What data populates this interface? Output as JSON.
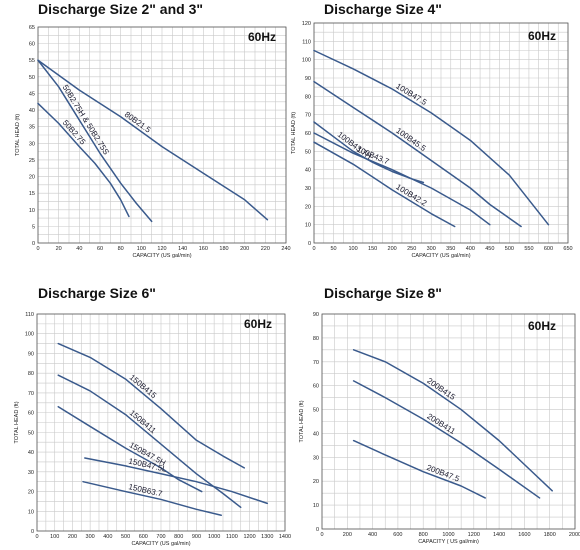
{
  "accent_color": "#3a5a8c",
  "chart_data": [
    {
      "type": "line",
      "title": "Discharge Size 2\" and 3\"",
      "frequency_label": "60Hz",
      "xlabel": "CAPACITY (US gal/min)",
      "ylabel": "TOTAL HEAD (ft)",
      "xlim": [
        0,
        240
      ],
      "ylim": [
        0,
        65
      ],
      "xticks": [
        0,
        20,
        40,
        60,
        80,
        100,
        120,
        140,
        160,
        180,
        200,
        220,
        240
      ],
      "yticks": [
        0,
        5,
        10,
        15,
        20,
        25,
        30,
        35,
        40,
        45,
        50,
        55,
        60,
        65
      ],
      "grid": true,
      "series": [
        {
          "name": "80B21.5",
          "x": [
            0,
            40,
            80,
            120,
            160,
            200,
            222
          ],
          "y": [
            55,
            46,
            38,
            29,
            21,
            13,
            7
          ]
        },
        {
          "name": "50B2.75H & 50B2.75S",
          "x": [
            0,
            20,
            40,
            60,
            80,
            95,
            110
          ],
          "y": [
            55,
            47,
            37,
            27,
            18,
            12,
            6.5
          ]
        },
        {
          "name": "50B2.75",
          "x": [
            0,
            20,
            40,
            55,
            70,
            80,
            88
          ],
          "y": [
            42,
            36,
            29,
            24,
            18,
            13,
            8
          ]
        }
      ]
    },
    {
      "type": "line",
      "title": "Discharge Size 4\"",
      "frequency_label": "60Hz",
      "xlabel": "CAPACITY (US gal/min)",
      "ylabel": "TOTAL HEAD (ft)",
      "xlim": [
        0,
        650
      ],
      "ylim": [
        0,
        120
      ],
      "xticks": [
        0,
        50,
        100,
        150,
        200,
        250,
        300,
        350,
        400,
        450,
        500,
        550,
        600,
        650
      ],
      "yticks": [
        0,
        10,
        20,
        30,
        40,
        50,
        60,
        70,
        80,
        90,
        100,
        110,
        120
      ],
      "grid": true,
      "series": [
        {
          "name": "100B47.5",
          "x": [
            0,
            100,
            200,
            300,
            400,
            500,
            600
          ],
          "y": [
            105,
            95,
            84,
            71,
            56,
            37,
            10
          ]
        },
        {
          "name": "100B45.5",
          "x": [
            0,
            100,
            200,
            300,
            400,
            450,
            530
          ],
          "y": [
            88,
            74,
            60,
            45,
            30,
            21,
            9
          ]
        },
        {
          "name": "100B43.7H",
          "x": [
            0,
            50,
            100,
            150,
            200,
            250,
            280
          ],
          "y": [
            66,
            58,
            50,
            44,
            39,
            35,
            33
          ]
        },
        {
          "name": "100B43.7",
          "x": [
            0,
            100,
            200,
            300,
            400,
            450
          ],
          "y": [
            60,
            49,
            40,
            30,
            18,
            10
          ]
        },
        {
          "name": "100B42.2",
          "x": [
            0,
            100,
            200,
            300,
            360
          ],
          "y": [
            55,
            43,
            29,
            16,
            9
          ]
        }
      ]
    },
    {
      "type": "line",
      "title": "Discharge Size 6\"",
      "frequency_label": "60Hz",
      "xlabel": "CAPACITY (US gal/min)",
      "ylabel": "TOTAL HEAD (ft)",
      "xlim": [
        0,
        1400
      ],
      "ylim": [
        0,
        110
      ],
      "xticks": [
        0,
        100,
        200,
        300,
        400,
        500,
        600,
        700,
        800,
        900,
        1000,
        1100,
        1200,
        1300,
        1400
      ],
      "yticks": [
        0,
        10,
        20,
        30,
        40,
        50,
        60,
        70,
        80,
        90,
        100,
        110
      ],
      "grid": true,
      "series": [
        {
          "name": "150B415",
          "x": [
            120,
            300,
            500,
            700,
            900,
            1050,
            1170
          ],
          "y": [
            95,
            88,
            77,
            62,
            46,
            38,
            32
          ]
        },
        {
          "name": "150B411",
          "x": [
            120,
            300,
            500,
            700,
            900,
            1050,
            1150
          ],
          "y": [
            79,
            71,
            59,
            44,
            29,
            19,
            12
          ]
        },
        {
          "name": "150B47.5H",
          "x": [
            120,
            300,
            500,
            700,
            800,
            930
          ],
          "y": [
            63,
            53,
            42,
            32,
            26,
            20
          ]
        },
        {
          "name": "150B47.5L",
          "x": [
            270,
            500,
            700,
            900,
            1100,
            1300
          ],
          "y": [
            37,
            33,
            29,
            25,
            20,
            14
          ]
        },
        {
          "name": "150B63.7",
          "x": [
            260,
            500,
            700,
            900,
            1040
          ],
          "y": [
            25,
            20,
            16,
            11,
            8
          ]
        }
      ]
    },
    {
      "type": "line",
      "title": "Discharge Size 8\"",
      "frequency_label": "60Hz",
      "xlabel": "CAPACITY ( US gal/min)",
      "ylabel": "TOTAL HEAD (ft)",
      "xlim": [
        0,
        2000
      ],
      "ylim": [
        0,
        90
      ],
      "xticks": [
        0,
        200,
        400,
        600,
        800,
        1000,
        1200,
        1400,
        1600,
        1800,
        2000
      ],
      "yticks": [
        0,
        10,
        20,
        30,
        40,
        50,
        60,
        70,
        80,
        90
      ],
      "grid": true,
      "series": [
        {
          "name": "200B415",
          "x": [
            250,
            500,
            800,
            1100,
            1400,
            1600,
            1820
          ],
          "y": [
            75,
            70,
            61,
            50,
            37,
            27,
            16
          ]
        },
        {
          "name": "200B411",
          "x": [
            250,
            500,
            800,
            1100,
            1400,
            1720
          ],
          "y": [
            62,
            55,
            46,
            36,
            25,
            13
          ]
        },
        {
          "name": "200B47.5",
          "x": [
            250,
            500,
            800,
            1100,
            1290
          ],
          "y": [
            37,
            31,
            24,
            18,
            13
          ]
        }
      ]
    }
  ]
}
